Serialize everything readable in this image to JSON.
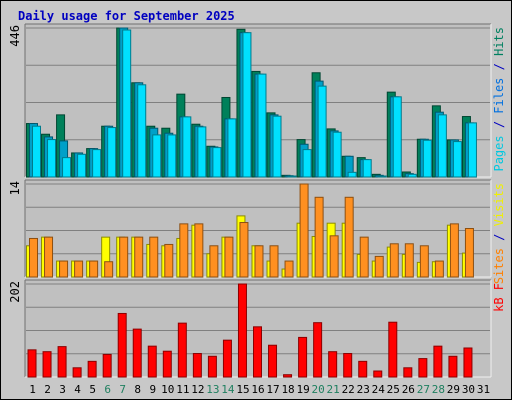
{
  "chart_data": {
    "type": "bar",
    "title": "Daily usage for September 2025",
    "categories": [
      "1",
      "2",
      "3",
      "4",
      "5",
      "6",
      "7",
      "8",
      "9",
      "10",
      "11",
      "12",
      "13",
      "14",
      "15",
      "16",
      "17",
      "18",
      "19",
      "20",
      "21",
      "22",
      "23",
      "24",
      "25",
      "26",
      "27",
      "28",
      "29",
      "30",
      "31"
    ],
    "weekend_days": [
      6,
      7,
      13,
      14,
      20,
      21,
      27,
      28
    ],
    "panels": [
      {
        "key": "hits",
        "ymax": 446,
        "ymax_label": "446",
        "side_labels": [
          {
            "text": "Pages",
            "color": "#00c8e0"
          },
          {
            "text": " / ",
            "color": "#0000c0"
          },
          {
            "text": "Files",
            "color": "#0070e0"
          },
          {
            "text": " / ",
            "color": "#0000c0"
          },
          {
            "text": "Hits",
            "color": "#008060"
          }
        ],
        "series": [
          {
            "name": "Hits",
            "color": "#00805a",
            "values": [
              160,
              128,
              186,
              72,
              85,
              152,
              446,
              282,
              152,
              146,
              248,
              158,
              92,
              238,
              442,
              316,
              192,
              5,
              112,
              312,
              144,
              62,
              58,
              8,
              254,
              15,
              113,
              213,
              111,
              181,
              0
            ]
          },
          {
            "name": "Files",
            "color": "#00a0c8",
            "values": [
              160,
              120,
              108,
              72,
              85,
              152,
              446,
              282,
              146,
              131,
              180,
              152,
              90,
              174,
              432,
              308,
              186,
              4,
              98,
              287,
              138,
              62,
              52,
              5,
              240,
              10,
              113,
              194,
              111,
              162,
              0
            ]
          },
          {
            "name": "Pages",
            "color": "#00e0ff",
            "values": [
              152,
              112,
              58,
              68,
              82,
              148,
              440,
              276,
              126,
              126,
              180,
              150,
              88,
              174,
              432,
              308,
              182,
              2,
              82,
              272,
              134,
              14,
              52,
              2,
              240,
              8,
              110,
              186,
              106,
              162,
              0
            ]
          }
        ]
      },
      {
        "key": "visits",
        "ymax": 14,
        "ymax_label": "14",
        "side_labels": [
          {
            "text": "Sites",
            "color": "#ff8000"
          },
          {
            "text": " / ",
            "color": "#0000c0"
          },
          {
            "text": "Visits",
            "color": "#f0f000"
          }
        ],
        "series": [
          {
            "name": "Visits",
            "color": "#ffff00",
            "values": [
              4.7,
              6,
              2.4,
              2.4,
              2.4,
              6,
              6,
              6,
              4.9,
              4.7,
              5.8,
              7.8,
              3.5,
              6,
              9.2,
              4.7,
              2.4,
              1.2,
              8.1,
              6.1,
              8.1,
              8.1,
              3.4,
              2.4,
              4.5,
              3.4,
              2.2,
              2.3,
              7.8,
              3.6,
              0
            ]
          },
          {
            "name": "Sites",
            "color": "#ff9020",
            "values": [
              5.8,
              6,
              2.4,
              2.4,
              2.4,
              2.3,
              6,
              6,
              6,
              4.9,
              8,
              8,
              4.7,
              6,
              8.2,
              4.7,
              4.7,
              2.4,
              14,
              12,
              6.2,
              12,
              6,
              3.1,
              5,
              5,
              4.7,
              2.4,
              8,
              7.3,
              0
            ]
          }
        ]
      },
      {
        "key": "kbytes",
        "ymax": 202,
        "ymax_label": "202",
        "side_labels": [
          {
            "text": "kB F",
            "color": "#ff0000"
          }
        ],
        "series": [
          {
            "name": "kB F",
            "color": "#ff0000",
            "values": [
              59,
              55,
              66,
              20,
              34,
              49,
              138,
              104,
              67,
              56,
              117,
              51,
              45,
              80,
              202,
              109,
              69,
              5,
              86,
              118,
              55,
              51,
              34,
              13,
              119,
              20,
              40,
              67,
              45,
              63,
              0
            ]
          }
        ]
      }
    ]
  }
}
